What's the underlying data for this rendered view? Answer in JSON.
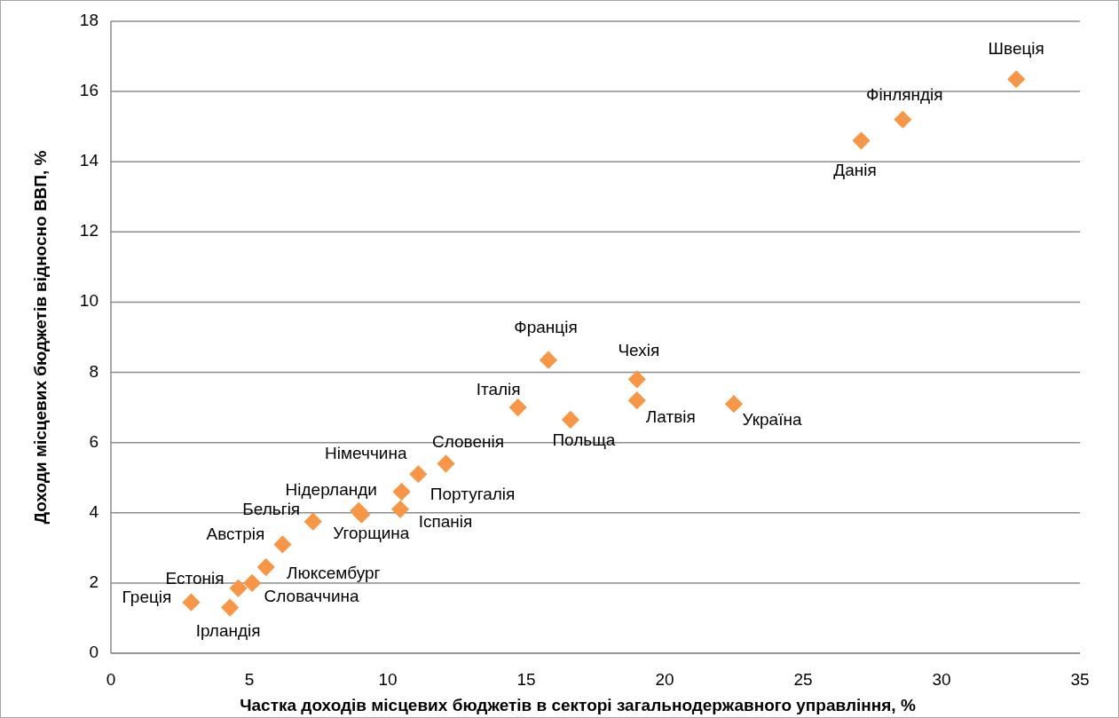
{
  "chart_data": {
    "type": "scatter",
    "xlabel": "Частка доходів місцевих бюджетів в секторі загальнодержавного управління, %",
    "ylabel": "Доходи місцевих бюджетів відносно ВВП, %",
    "x": [
      32.7,
      28.6,
      27.1,
      15.8,
      19.0,
      19.0,
      22.5,
      14.7,
      16.6,
      12.1,
      11.1,
      10.5,
      10.45,
      8.95,
      9.05,
      7.3,
      6.2,
      5.6,
      5.1,
      4.6,
      2.9,
      4.3
    ],
    "series": [
      {
        "color": "#f79646",
        "values": [
          16.35,
          15.2,
          14.6,
          8.35,
          7.8,
          7.2,
          7.1,
          7.0,
          6.65,
          5.4,
          5.1,
          4.6,
          4.1,
          4.05,
          3.95,
          3.75,
          3.1,
          2.45,
          2.0,
          1.85,
          1.45,
          1.3
        ]
      }
    ],
    "annotations": [
      {
        "text": "Швеція",
        "x": 32.7,
        "y": 16.35
      },
      {
        "text": "Фінляндія",
        "x": 28.6,
        "y": 15.2
      },
      {
        "text": "Данія",
        "x": 27.1,
        "y": 14.6
      },
      {
        "text": "Франція",
        "x": 15.8,
        "y": 8.35
      },
      {
        "text": "Чехія",
        "x": 19.0,
        "y": 7.8
      },
      {
        "text": "Латвія",
        "x": 19.0,
        "y": 7.2
      },
      {
        "text": "Україна",
        "x": 22.5,
        "y": 7.1
      },
      {
        "text": "Італія",
        "x": 14.7,
        "y": 7.0
      },
      {
        "text": "Польща",
        "x": 16.6,
        "y": 6.65
      },
      {
        "text": "Словенія",
        "x": 12.1,
        "y": 5.4
      },
      {
        "text": "Німеччина",
        "x": 11.1,
        "y": 5.1
      },
      {
        "text": "Португалія",
        "x": 10.5,
        "y": 4.6
      },
      {
        "text": "Іспанія",
        "x": 10.45,
        "y": 4.1
      },
      {
        "text": "Нідерланди",
        "x": 8.95,
        "y": 4.05
      },
      {
        "text": "Угорщина",
        "x": 9.05,
        "y": 3.95
      },
      {
        "text": "Бельгія",
        "x": 7.3,
        "y": 3.75
      },
      {
        "text": "Австрія",
        "x": 6.2,
        "y": 3.1
      },
      {
        "text": "Люксембург",
        "x": 5.6,
        "y": 2.45
      },
      {
        "text": "Словаччина",
        "x": 5.1,
        "y": 2.0
      },
      {
        "text": "Естонія",
        "x": 4.6,
        "y": 1.85
      },
      {
        "text": "Греція",
        "x": 2.9,
        "y": 1.45
      },
      {
        "text": "Ірландія",
        "x": 4.3,
        "y": 1.3
      }
    ],
    "xlim": [
      0,
      35
    ],
    "xticks": [
      0,
      5,
      10,
      15,
      20,
      25,
      30,
      35
    ],
    "ylim": [
      0,
      18
    ],
    "yticks": [
      0,
      2,
      4,
      6,
      8,
      10,
      12,
      14,
      16,
      18
    ],
    "grid": "y",
    "marker": "diamond"
  }
}
